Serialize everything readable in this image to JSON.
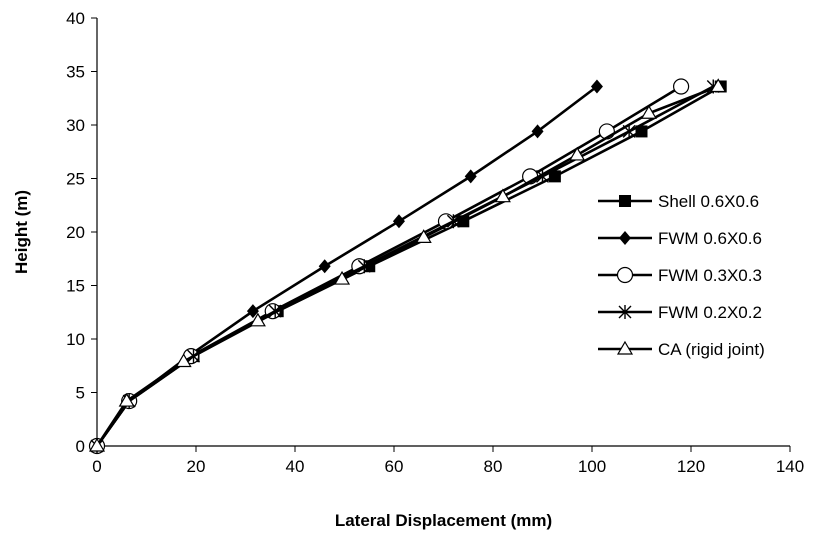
{
  "chart_data": {
    "type": "line",
    "title": "",
    "xlabel": "Lateral Displacement (mm)",
    "ylabel": "Height (m)",
    "xlim": [
      0,
      140
    ],
    "ylim": [
      0,
      40
    ],
    "xticks": [
      "0",
      "20",
      "40",
      "60",
      "80",
      "100",
      "120",
      "140"
    ],
    "yticks": [
      "0",
      "5",
      "10",
      "15",
      "20",
      "25",
      "30",
      "35",
      "40"
    ],
    "grid": false,
    "legend_position": "right",
    "series": [
      {
        "name": "Shell 0.6X0.6",
        "marker": "square-filled",
        "color": "#000000",
        "points": [
          [
            0,
            0
          ],
          [
            6.5,
            4.2
          ],
          [
            19.5,
            8.4
          ],
          [
            36.5,
            12.6
          ],
          [
            55,
            16.8
          ],
          [
            74,
            21
          ],
          [
            92.5,
            25.2
          ],
          [
            110,
            29.4
          ],
          [
            126,
            33.6
          ]
        ]
      },
      {
        "name": "FWM 0.6X0.6",
        "marker": "diamond-filled",
        "color": "#000000",
        "points": [
          [
            0,
            0
          ],
          [
            6.5,
            4.2
          ],
          [
            18.5,
            8.4
          ],
          [
            31.5,
            12.6
          ],
          [
            46,
            16.8
          ],
          [
            61,
            21
          ],
          [
            75.5,
            25.2
          ],
          [
            89,
            29.4
          ],
          [
            101,
            33.6
          ]
        ]
      },
      {
        "name": "FWM 0.3X0.3",
        "marker": "circle-open",
        "color": "#000000",
        "points": [
          [
            0,
            0
          ],
          [
            6.5,
            4.2
          ],
          [
            19,
            8.4
          ],
          [
            35.5,
            12.6
          ],
          [
            53,
            16.8
          ],
          [
            70.5,
            21
          ],
          [
            87.5,
            25.2
          ],
          [
            103,
            29.4
          ],
          [
            118,
            33.6
          ]
        ]
      },
      {
        "name": "FWM 0.2X0.2",
        "marker": "star",
        "color": "#000000",
        "points": [
          [
            0,
            0
          ],
          [
            6.5,
            4.2
          ],
          [
            19.5,
            8.4
          ],
          [
            36,
            12.6
          ],
          [
            54,
            16.8
          ],
          [
            72,
            21
          ],
          [
            90,
            25.2
          ],
          [
            107.5,
            29.4
          ],
          [
            124.5,
            33.6
          ]
        ]
      },
      {
        "name": "CA (rigid joint)",
        "marker": "triangle-open",
        "color": "#000000",
        "points": [
          [
            0,
            0
          ],
          [
            6,
            4.2
          ],
          [
            17.5,
            7.9
          ],
          [
            32.5,
            11.7
          ],
          [
            49.5,
            15.6
          ],
          [
            66,
            19.5
          ],
          [
            82,
            23.3
          ],
          [
            97,
            27.2
          ],
          [
            111.5,
            31.1
          ],
          [
            125.5,
            33.6
          ]
        ]
      }
    ]
  }
}
